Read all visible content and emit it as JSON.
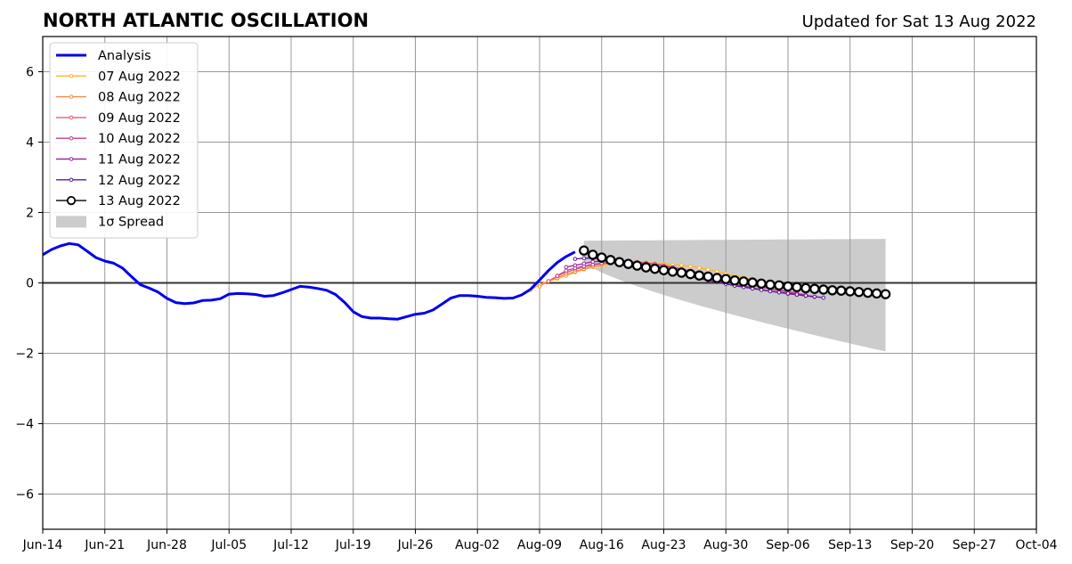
{
  "title": "NORTH ATLANTIC OSCILLATION",
  "updated_label": "Updated for Sat 13 Aug 2022",
  "chart_data": {
    "type": "line",
    "title": "NORTH ATLANTIC OSCILLATION",
    "subtitle": "Updated for Sat 13 Aug 2022",
    "xlabel": "",
    "ylabel": "",
    "xlim": [
      "2022-06-14",
      "2022-10-04"
    ],
    "ylim": [
      -7,
      7
    ],
    "x_ticks": [
      "Jun-14",
      "Jun-21",
      "Jun-28",
      "Jul-05",
      "Jul-12",
      "Jul-19",
      "Jul-26",
      "Aug-02",
      "Aug-09",
      "Aug-16",
      "Aug-23",
      "Aug-30",
      "Sep-06",
      "Sep-13",
      "Sep-20",
      "Sep-27",
      "Oct-04"
    ],
    "y_ticks": [
      6,
      4,
      2,
      0,
      -2,
      -4,
      -6
    ],
    "y_tick_labels": [
      "6",
      "4",
      "2",
      "0",
      "−2",
      "−4",
      "−6"
    ],
    "grid": true,
    "legend_position": "top-left",
    "analysis": {
      "name": "Analysis",
      "color": "#0000ee",
      "start": "2022-06-14",
      "values": [
        0.8,
        0.95,
        1.05,
        1.12,
        1.08,
        0.9,
        0.72,
        0.62,
        0.56,
        0.42,
        0.18,
        -0.05,
        -0.15,
        -0.26,
        -0.44,
        -0.56,
        -0.59,
        -0.57,
        -0.5,
        -0.49,
        -0.45,
        -0.32,
        -0.3,
        -0.31,
        -0.33,
        -0.38,
        -0.36,
        -0.28,
        -0.19,
        -0.1,
        -0.12,
        -0.16,
        -0.21,
        -0.33,
        -0.55,
        -0.82,
        -0.96,
        -1.0,
        -1.0,
        -1.02,
        -1.03,
        -0.96,
        -0.89,
        -0.86,
        -0.77,
        -0.6,
        -0.43,
        -0.36,
        -0.36,
        -0.38,
        -0.41,
        -0.42,
        -0.44,
        -0.43,
        -0.34,
        -0.18,
        0.08,
        0.35,
        0.58,
        0.75,
        0.88
      ]
    },
    "forecasts": [
      {
        "name": "07 Aug 2022",
        "color": "#fbb330",
        "start": "2022-08-08",
        "values": [
          -0.2,
          -0.05,
          0.05,
          0.12,
          0.2,
          0.3,
          0.38,
          0.45,
          0.5,
          0.55,
          0.58,
          0.6,
          0.6,
          0.58,
          0.56,
          0.54,
          0.52,
          0.5,
          0.47,
          0.43,
          0.38,
          0.32,
          0.26,
          0.2,
          0.15,
          0.1,
          0.05,
          0.0,
          -0.04
        ]
      },
      {
        "name": "08 Aug 2022",
        "color": "#f58a45",
        "start": "2022-08-09",
        "values": [
          -0.1,
          0.05,
          0.15,
          0.25,
          0.32,
          0.4,
          0.47,
          0.53,
          0.56,
          0.58,
          0.58,
          0.57,
          0.55,
          0.52,
          0.49,
          0.45,
          0.4,
          0.35,
          0.3,
          0.25,
          0.2,
          0.15,
          0.1,
          0.05,
          0.0,
          -0.05,
          -0.09,
          -0.13,
          -0.17
        ]
      },
      {
        "name": "09 Aug 2022",
        "color": "#e0607a",
        "start": "2022-08-10",
        "values": [
          0.05,
          0.2,
          0.3,
          0.38,
          0.45,
          0.52,
          0.56,
          0.58,
          0.6,
          0.6,
          0.59,
          0.57,
          0.54,
          0.5,
          0.45,
          0.4,
          0.34,
          0.28,
          0.22,
          0.16,
          0.1,
          0.05,
          0.0,
          -0.05,
          -0.1,
          -0.15,
          -0.2,
          -0.24,
          -0.28
        ]
      },
      {
        "name": "10 Aug 2022",
        "color": "#c23f8c",
        "start": "2022-08-11",
        "values": [
          0.2,
          0.35,
          0.42,
          0.48,
          0.52,
          0.56,
          0.58,
          0.6,
          0.6,
          0.58,
          0.55,
          0.52,
          0.48,
          0.43,
          0.38,
          0.32,
          0.26,
          0.2,
          0.14,
          0.08,
          0.03,
          -0.02,
          -0.07,
          -0.12,
          -0.17,
          -0.22,
          -0.26,
          -0.3,
          -0.34
        ]
      },
      {
        "name": "11 Aug 2022",
        "color": "#9a2a9f",
        "start": "2022-08-12",
        "values": [
          0.45,
          0.5,
          0.55,
          0.6,
          0.62,
          0.62,
          0.6,
          0.57,
          0.54,
          0.5,
          0.46,
          0.41,
          0.36,
          0.3,
          0.24,
          0.18,
          0.12,
          0.06,
          0.01,
          -0.04,
          -0.09,
          -0.14,
          -0.19,
          -0.23,
          -0.27,
          -0.31,
          -0.34,
          -0.37,
          -0.4
        ]
      },
      {
        "name": "12 Aug 2022",
        "color": "#5a1a9a",
        "start": "2022-08-13",
        "values": [
          0.68,
          0.7,
          0.7,
          0.68,
          0.64,
          0.6,
          0.56,
          0.52,
          0.47,
          0.42,
          0.36,
          0.3,
          0.24,
          0.18,
          0.12,
          0.07,
          0.02,
          -0.03,
          -0.08,
          -0.12,
          -0.16,
          -0.2,
          -0.24,
          -0.27,
          -0.3,
          -0.33,
          -0.36,
          -0.39,
          -0.42
        ]
      },
      {
        "name": "13 Aug 2022",
        "color": "#000000",
        "start": "2022-08-14",
        "values": [
          0.92,
          0.8,
          0.72,
          0.65,
          0.59,
          0.54,
          0.49,
          0.44,
          0.4,
          0.36,
          0.32,
          0.29,
          0.25,
          0.21,
          0.18,
          0.14,
          0.11,
          0.07,
          0.04,
          0.01,
          -0.02,
          -0.05,
          -0.07,
          -0.1,
          -0.12,
          -0.15,
          -0.17,
          -0.19,
          -0.21,
          -0.22,
          -0.24,
          -0.26,
          -0.28,
          -0.3,
          -0.32
        ]
      }
    ],
    "spread": {
      "name": "1σ Spread",
      "color": "#cccccc",
      "start": "2022-08-14",
      "end": "2022-09-17",
      "upper_start": 1.2,
      "upper_end": 1.25,
      "lower_start": 0.6,
      "lower_end": -1.95
    }
  }
}
